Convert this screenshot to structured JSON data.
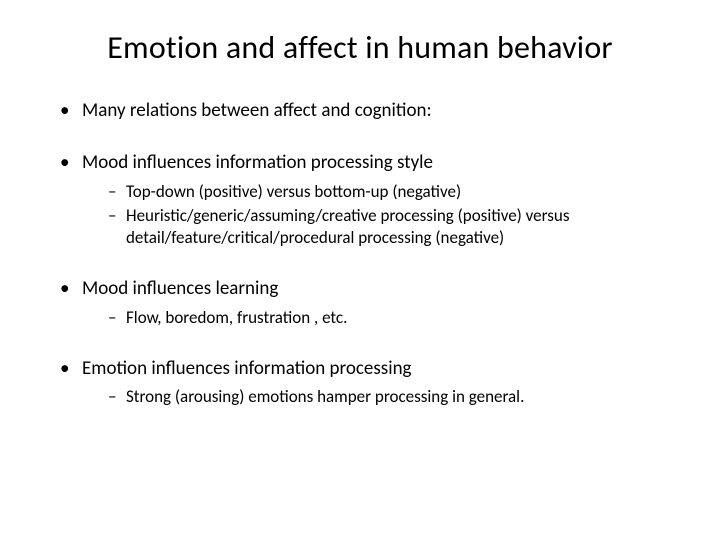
{
  "title": "Emotion and affect in human behavior",
  "bullets": [
    {
      "text": "Many relations between affect and cognition:",
      "subs": []
    },
    {
      "text": "Mood influences information processing style",
      "subs": [
        "Top-down (positive) versus bottom-up (negative)",
        "Heuristic/generic/assuming/creative processing (positive) versus detail/feature/critical/procedural processing (negative)"
      ]
    },
    {
      "text": "Mood influences learning",
      "subs": [
        "Flow, boredom, frustration , etc."
      ]
    },
    {
      "text": "Emotion influences information processing",
      "subs": [
        "Strong (arousing) emotions hamper processing in general."
      ]
    }
  ],
  "colors": {
    "background": "#ffffff",
    "text": "#000000"
  },
  "typography": {
    "title_fontsize": 32,
    "bullet_fontsize": 19,
    "sub_fontsize": 17,
    "font_family": "Calibri"
  }
}
